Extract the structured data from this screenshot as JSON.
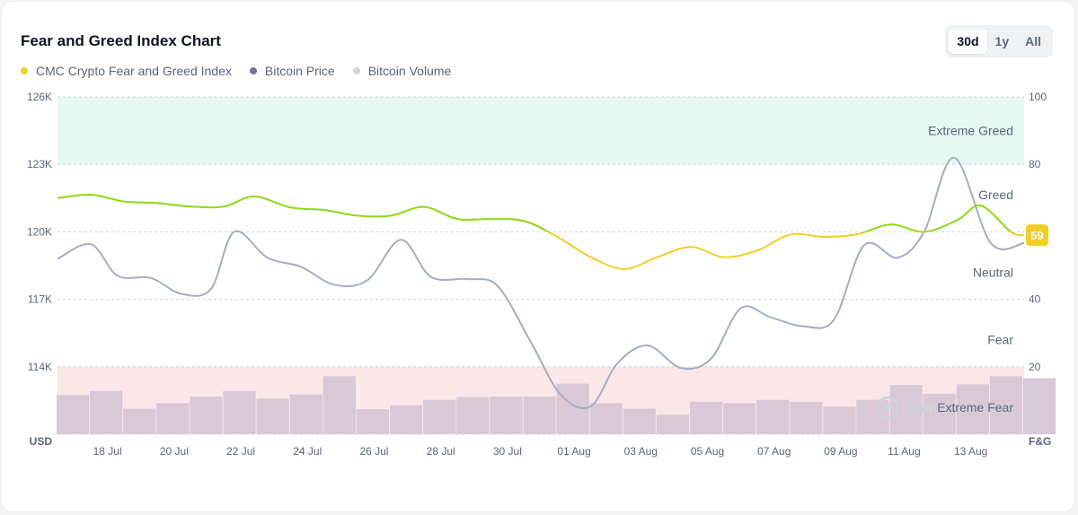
{
  "title": "Fear and Greed Index Chart",
  "range_buttons": [
    "30d",
    "1y",
    "All"
  ],
  "active_range": "30d",
  "legend": [
    {
      "label": "CMC Crypto Fear and Greed Index",
      "color": "#f0cf29"
    },
    {
      "label": "Bitcoin Price",
      "color": "#6b7795"
    },
    {
      "label": "Bitcoin Volume",
      "color": "#cfd4e0"
    }
  ],
  "watermark": "CoinMarketCap",
  "current_badge": "59",
  "colors": {
    "greed_line": "#8fd817",
    "neutral_line": "#f0cf29",
    "price_line": "#a2afc4",
    "volume_bar": "#d7c7d5",
    "extreme_greed_bg": "#e6f8f1",
    "extreme_fear_bg": "#fbe6e8",
    "badge": "#f0cf29"
  },
  "chart_data": {
    "type": "line",
    "title": "Fear and Greed Index Chart",
    "left_axis": {
      "label": "USD",
      "ticks": [
        "126K",
        "123K",
        "120K",
        "117K",
        "114K"
      ],
      "ylim": [
        111000,
        126000
      ]
    },
    "right_axis": {
      "label": "F&G",
      "ticks": [
        "100",
        "80",
        "60",
        "40",
        "20"
      ],
      "ylim": [
        0,
        100
      ]
    },
    "x_ticks": [
      "18 Jul",
      "20 Jul",
      "22 Jul",
      "24 Jul",
      "26 Jul",
      "28 Jul",
      "30 Jul",
      "01 Aug",
      "03 Aug",
      "05 Aug",
      "07 Aug",
      "09 Aug",
      "11 Aug",
      "13 Aug"
    ],
    "zones": [
      {
        "label": "Extreme Greed",
        "from": 80,
        "to": 100
      },
      {
        "label": "Greed",
        "from": 60,
        "to": 80
      },
      {
        "label": "Neutral",
        "from": 40,
        "to": 60
      },
      {
        "label": "Fear",
        "from": 20,
        "to": 40
      },
      {
        "label": "Extreme Fear",
        "from": 0,
        "to": 20
      }
    ],
    "series": [
      {
        "name": "CMC Crypto Fear and Greed Index",
        "axis": "right",
        "points": [
          [
            16.0,
            70.0
          ],
          [
            17.0,
            71.0
          ],
          [
            18.0,
            69.0
          ],
          [
            19.0,
            68.5
          ],
          [
            20.0,
            67.5
          ],
          [
            21.0,
            67.5
          ],
          [
            21.9,
            70.5
          ],
          [
            23.0,
            67.2
          ],
          [
            24.0,
            66.5
          ],
          [
            25.0,
            64.8
          ],
          [
            26.0,
            64.8
          ],
          [
            27.0,
            67.4
          ],
          [
            28.0,
            63.8
          ],
          [
            29.0,
            63.8
          ],
          [
            30.0,
            63.2
          ],
          [
            31.0,
            58.5
          ],
          [
            32.0,
            52.5
          ],
          [
            33.0,
            49.0
          ],
          [
            34.0,
            52.5
          ],
          [
            35.0,
            55.5
          ],
          [
            36.0,
            52.5
          ],
          [
            37.0,
            54.5
          ],
          [
            38.0,
            59.2
          ],
          [
            39.0,
            58.5
          ],
          [
            40.0,
            59.3
          ],
          [
            41.0,
            62.2
          ],
          [
            42.0,
            60.0
          ],
          [
            43.0,
            63.5
          ],
          [
            43.7,
            67.8
          ],
          [
            44.6,
            60.0
          ],
          [
            45.0,
            59.0
          ]
        ]
      },
      {
        "name": "Bitcoin Price",
        "axis": "left",
        "points": [
          [
            16.0,
            118800
          ],
          [
            17.0,
            119450
          ],
          [
            17.8,
            118050
          ],
          [
            18.8,
            117950
          ],
          [
            19.7,
            117250
          ],
          [
            20.6,
            117450
          ],
          [
            21.3,
            120000
          ],
          [
            22.3,
            118850
          ],
          [
            23.3,
            118450
          ],
          [
            24.3,
            117650
          ],
          [
            25.3,
            117850
          ],
          [
            26.3,
            119650
          ],
          [
            27.2,
            118000
          ],
          [
            28.3,
            117900
          ],
          [
            29.2,
            117600
          ],
          [
            30.2,
            115100
          ],
          [
            31.1,
            112750
          ],
          [
            32.0,
            112250
          ],
          [
            32.8,
            114150
          ],
          [
            33.7,
            114950
          ],
          [
            34.7,
            113950
          ],
          [
            35.6,
            114350
          ],
          [
            36.5,
            116600
          ],
          [
            37.4,
            116200
          ],
          [
            38.4,
            115800
          ],
          [
            39.3,
            116100
          ],
          [
            40.2,
            119400
          ],
          [
            41.2,
            118850
          ],
          [
            42.0,
            120000
          ],
          [
            42.9,
            123300
          ],
          [
            44.0,
            119500
          ],
          [
            45.0,
            119500
          ]
        ]
      },
      {
        "name": "Bitcoin Volume",
        "type": "bar",
        "days": [
          16,
          17,
          18,
          19,
          20,
          21,
          22,
          23,
          24,
          25,
          26,
          27,
          28,
          29,
          30,
          31,
          32,
          33,
          34,
          35,
          36,
          37,
          38,
          39,
          40,
          41,
          42,
          43,
          44,
          45
        ],
        "values": [
          58,
          64,
          38,
          46,
          56,
          64,
          53,
          59,
          86,
          37,
          43,
          51,
          55,
          56,
          56,
          75,
          46,
          38,
          29,
          48,
          46,
          51,
          48,
          41,
          51,
          73,
          60,
          74,
          86,
          83
        ]
      }
    ]
  }
}
